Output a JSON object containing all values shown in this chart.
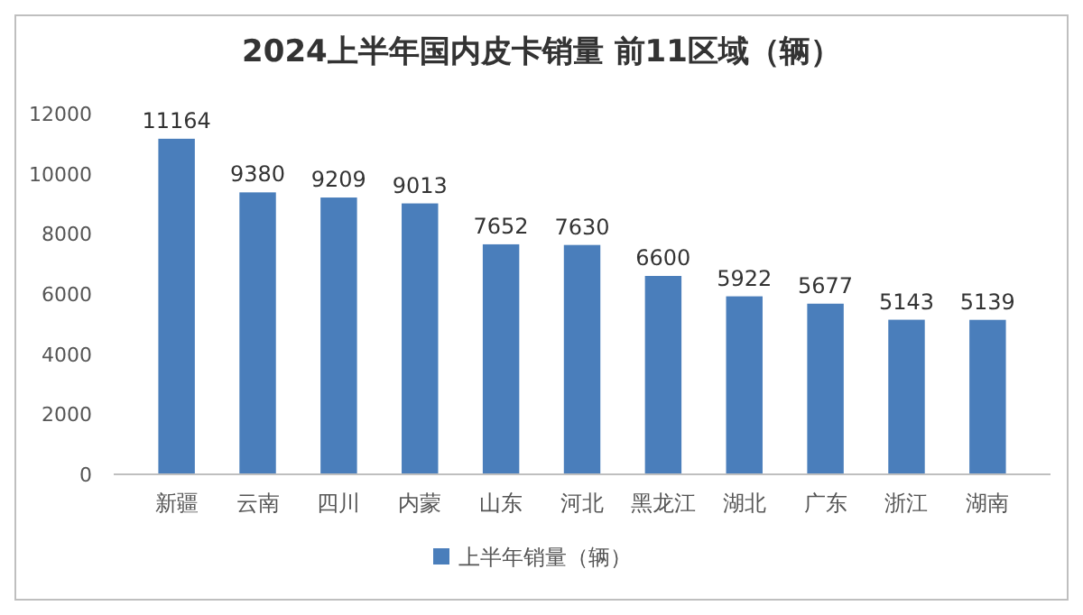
{
  "chart_data": {
    "type": "bar",
    "title": "2024上半年国内皮卡销量 前11区域（辆）",
    "categories": [
      "新疆",
      "云南",
      "四川",
      "内蒙",
      "山东",
      "河北",
      "黑龙江",
      "湖北",
      "广东",
      "浙江",
      "湖南"
    ],
    "series": [
      {
        "name": "上半年销量（辆）",
        "color": "#4a7ebb",
        "values": [
          11164,
          9380,
          9209,
          9013,
          7652,
          7630,
          6600,
          5922,
          5677,
          5143,
          5139
        ]
      }
    ],
    "ylim": [
      0,
      12000
    ],
    "yticks": [
      0,
      2000,
      4000,
      6000,
      8000,
      10000,
      12000
    ],
    "data_labels": true,
    "legend": "bottom"
  }
}
